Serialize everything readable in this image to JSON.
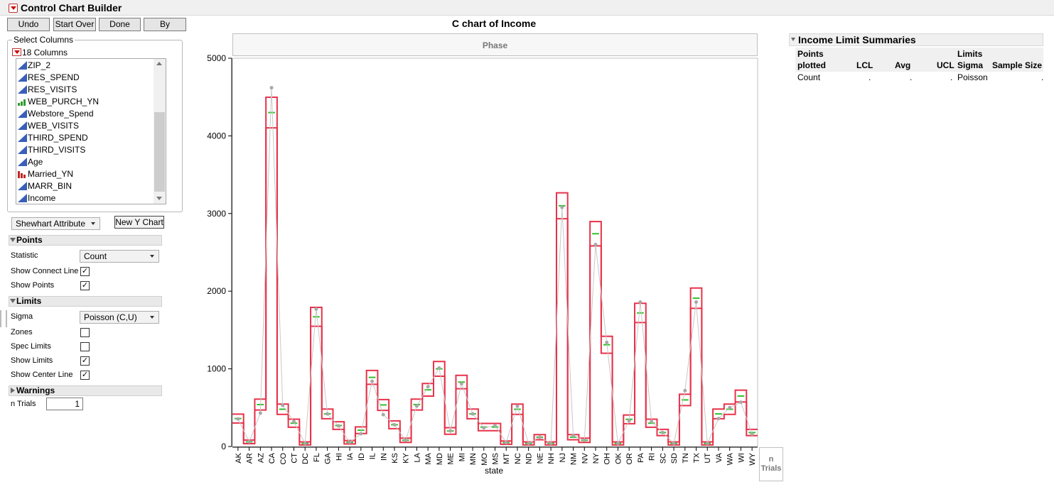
{
  "app": {
    "title": "Control Chart Builder"
  },
  "toolbar": {
    "undo": "Undo",
    "start_over": "Start Over",
    "done": "Done",
    "by": "By"
  },
  "select_columns": {
    "label": "Select Columns",
    "count_label": "18 Columns",
    "items": [
      {
        "name": "ZIP_2",
        "icon": "continuous"
      },
      {
        "name": "RES_SPEND",
        "icon": "continuous"
      },
      {
        "name": "RES_VISITS",
        "icon": "continuous"
      },
      {
        "name": "WEB_PURCH_YN",
        "icon": "ordinal"
      },
      {
        "name": "Webstore_Spend",
        "icon": "continuous"
      },
      {
        "name": "WEB_VISITS",
        "icon": "continuous"
      },
      {
        "name": "THIRD_SPEND",
        "icon": "continuous"
      },
      {
        "name": "THIRD_VISITS",
        "icon": "continuous"
      },
      {
        "name": "Age",
        "icon": "continuous"
      },
      {
        "name": "Married_YN",
        "icon": "nominal"
      },
      {
        "name": "MARR_BIN",
        "icon": "continuous"
      },
      {
        "name": "Income",
        "icon": "continuous"
      }
    ]
  },
  "chart_type": {
    "value": "Shewhart Attribute",
    "new_chart": "New Y Chart"
  },
  "points": {
    "header": "Points",
    "statistic_label": "Statistic",
    "statistic_value": "Count",
    "connect_label": "Show Connect Line",
    "connect_checked": "✓",
    "points_label": "Show Points",
    "points_checked": "✓"
  },
  "limits": {
    "header": "Limits",
    "sigma_label": "Sigma",
    "sigma_value": "Poisson (C,U)",
    "zones_label": "Zones",
    "zones_checked": "",
    "spec_label": "Spec Limits",
    "spec_checked": "",
    "show_limits_label": "Show Limits",
    "show_limits_checked": "✓",
    "center_label": "Show Center Line",
    "center_checked": "✓"
  },
  "warnings": {
    "header": "Warnings",
    "n_trials_label": "n Trials",
    "n_trials_value": "1"
  },
  "colors": {
    "limit_line": "#e8324a",
    "center_line": "#2ec22e",
    "point": "#a8a8a8",
    "connect_line": "#c8c8c8"
  },
  "chart_data": {
    "type": "line",
    "title": "C chart of Income",
    "phase_label": "Phase",
    "xlabel": "state",
    "n_label": "n",
    "trials_label": "Trials",
    "ylim": [
      0,
      5000
    ],
    "yticks": [
      0,
      1000,
      2000,
      3000,
      4000,
      5000
    ],
    "categories": [
      "AK",
      "AR",
      "AZ",
      "CA",
      "CO",
      "CT",
      "DC",
      "FL",
      "GA",
      "HI",
      "IA",
      "ID",
      "IL",
      "IN",
      "KS",
      "KY",
      "LA",
      "MA",
      "MD",
      "ME",
      "MI",
      "MN",
      "MO",
      "MS",
      "MT",
      "NC",
      "ND",
      "NE",
      "NH",
      "NJ",
      "NM",
      "NV",
      "NY",
      "OH",
      "OK",
      "OR",
      "PA",
      "RI",
      "SC",
      "SD",
      "TN",
      "TX",
      "UT",
      "VA",
      "WA",
      "WI",
      "WY"
    ],
    "series": [
      {
        "name": "Count",
        "values": [
          355,
          60,
          430,
          4620,
          530,
          320,
          40,
          1770,
          420,
          265,
          55,
          165,
          840,
          410,
          280,
          80,
          520,
          770,
          1010,
          200,
          810,
          420,
          240,
          270,
          50,
          520,
          40,
          120,
          40,
          3080,
          140,
          80,
          2600,
          1340,
          40,
          330,
          1860,
          320,
          180,
          40,
          720,
          1860,
          40,
          360,
          500,
          570,
          160
        ]
      },
      {
        "name": "Avg",
        "values": [
          360,
          60,
          540,
          4300,
          480,
          300,
          40,
          1670,
          420,
          270,
          55,
          210,
          890,
          535,
          280,
          80,
          540,
          730,
          1000,
          200,
          830,
          420,
          250,
          250,
          50,
          480,
          40,
          120,
          40,
          3100,
          120,
          80,
          2740,
          1310,
          40,
          350,
          1720,
          300,
          180,
          40,
          600,
          1910,
          40,
          420,
          480,
          650,
          180
        ]
      },
      {
        "name": "UCL",
        "values": [
          417,
          83,
          610,
          4497,
          546,
          352,
          59,
          1792,
          482,
          319,
          77,
          253,
          979,
          605,
          330,
          107,
          610,
          811,
          1095,
          242,
          916,
          482,
          297,
          297,
          71,
          546,
          59,
          153,
          59,
          3267,
          153,
          107,
          2897,
          1419,
          59,
          406,
          1844,
          352,
          220,
          59,
          673,
          2041,
          59,
          482,
          546,
          726,
          220
        ]
      },
      {
        "name": "LCL",
        "values": [
          303,
          37,
          470,
          4103,
          414,
          248,
          21,
          1548,
          358,
          221,
          33,
          167,
          801,
          465,
          230,
          53,
          470,
          649,
          905,
          158,
          744,
          358,
          203,
          203,
          29,
          414,
          21,
          87,
          21,
          2933,
          87,
          53,
          2583,
          1201,
          21,
          294,
          1596,
          248,
          140,
          21,
          527,
          1779,
          21,
          358,
          414,
          574,
          140
        ]
      }
    ]
  },
  "summary": {
    "title": "Income Limit Summaries",
    "headers": {
      "points_plotted_1": "Points",
      "points_plotted_2": "plotted",
      "lcl": "LCL",
      "avg": "Avg",
      "ucl": "UCL",
      "limits_sigma_1": "Limits",
      "limits_sigma_2": "Sigma",
      "sample_size": "Sample Size"
    },
    "row": {
      "points_plotted": "Count",
      "lcl": ".",
      "avg": ".",
      "ucl": ".",
      "sigma": "Poisson",
      "sample_size": "."
    }
  }
}
